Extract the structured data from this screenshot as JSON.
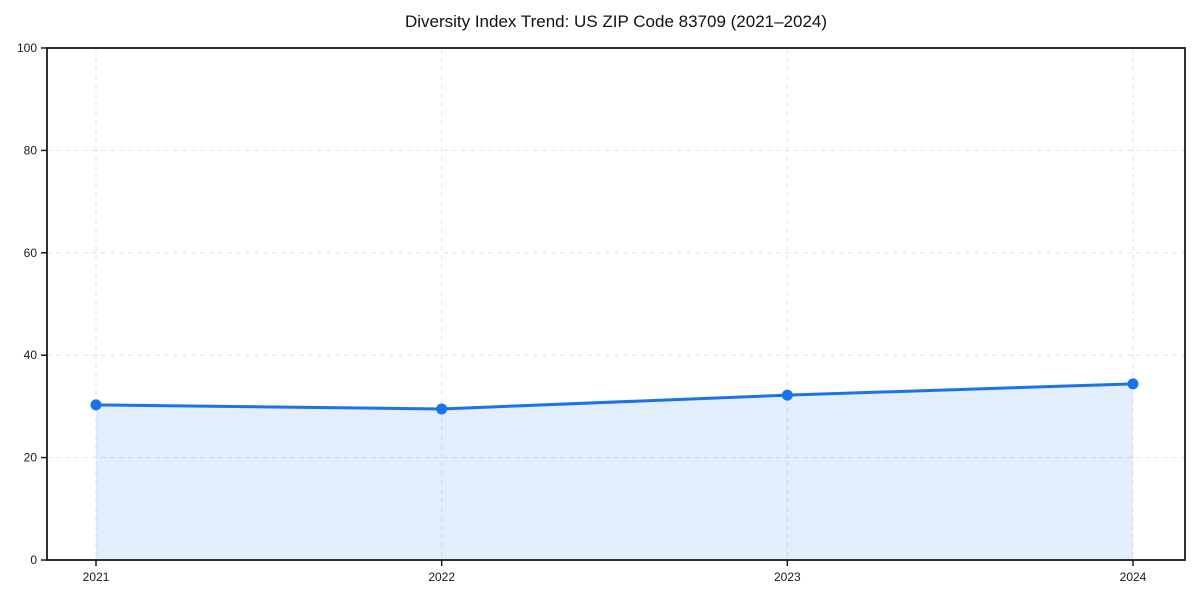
{
  "chart_data": {
    "type": "area",
    "title": "Diversity Index Trend: US ZIP Code 83709 (2021–2024)",
    "x": [
      "2021",
      "2022",
      "2023",
      "2024"
    ],
    "values": [
      30.3,
      29.5,
      32.2,
      34.4
    ],
    "series_name": "Diversity Index",
    "xlabel": "",
    "ylabel": "",
    "ylim": [
      0,
      100
    ],
    "yticks": [
      0,
      20,
      40,
      60,
      80,
      100
    ],
    "grid": true,
    "grid_style": "dashed",
    "legend_position": "none",
    "line_color": "#1a73e8",
    "fill_color": "rgba(26,115,232,0.12)",
    "marker": "circle",
    "grid_color": "#e3e3e3",
    "axis_color": "#1a1a1a",
    "background_color": "#ffffff"
  }
}
